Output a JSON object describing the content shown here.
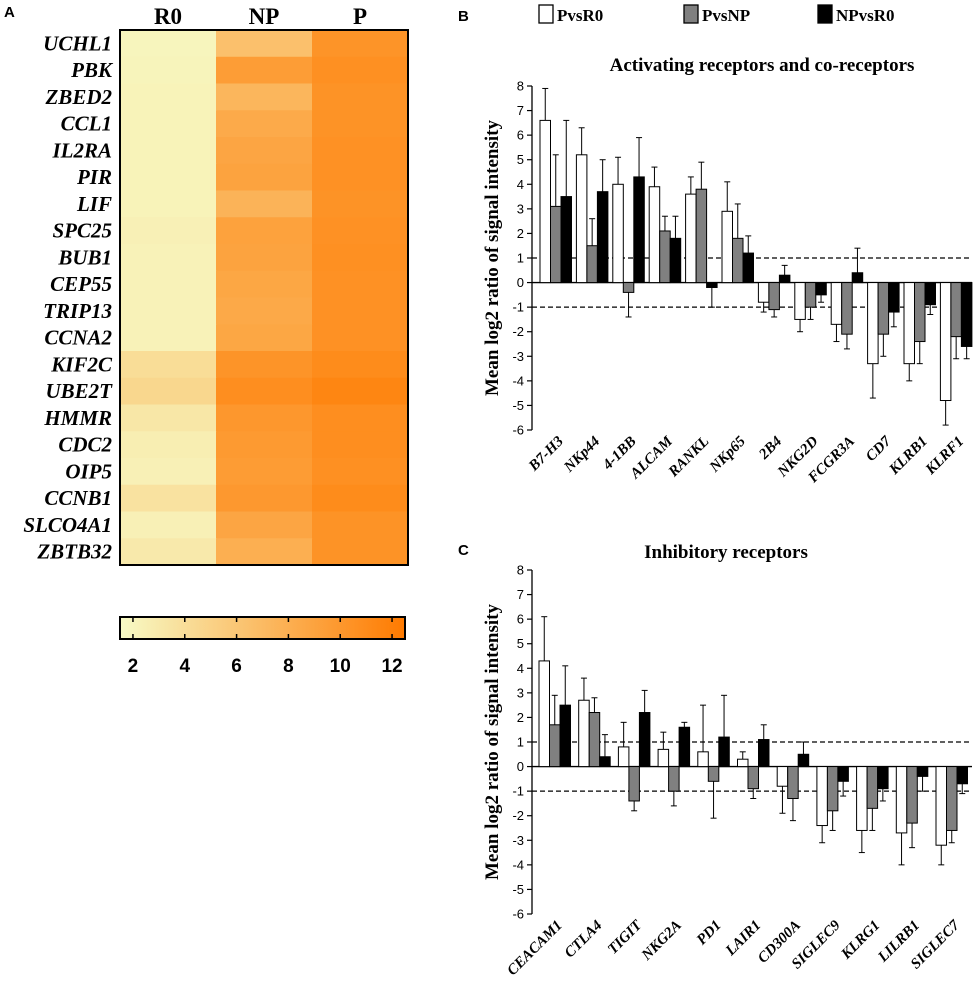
{
  "panels": {
    "a": "A",
    "b": "B",
    "c": "C"
  },
  "legend": [
    {
      "label": "PvsR0",
      "color": "#ffffff"
    },
    {
      "label": "PvsNP",
      "color": "#808080"
    },
    {
      "label": "NPvsR0",
      "color": "#000000"
    }
  ],
  "chart_data": [
    {
      "type": "heatmap",
      "panel": "A",
      "columns": [
        "R0",
        "NP",
        "P"
      ],
      "rows": [
        "UCHL1",
        "PBK",
        "ZBED2",
        "CCL1",
        "IL2RA",
        "PIR",
        "LIF",
        "SPC25",
        "BUB1",
        "CEP55",
        "TRIP13",
        "CCNA2",
        "KIF2C",
        "UBE2T",
        "HMMR",
        "CDC2",
        "OIP5",
        "CCNB1",
        "SLCO4A1",
        "ZBTB32"
      ],
      "values": [
        [
          2.0,
          6.5,
          10.3
        ],
        [
          2.1,
          9.5,
          10.6
        ],
        [
          2.2,
          7.4,
          10.4
        ],
        [
          2.2,
          8.4,
          10.4
        ],
        [
          2.2,
          8.8,
          10.5
        ],
        [
          2.2,
          9.0,
          10.5
        ],
        [
          2.2,
          7.6,
          10.4
        ],
        [
          2.4,
          9.1,
          10.5
        ],
        [
          2.3,
          9.0,
          10.6
        ],
        [
          2.3,
          8.7,
          10.5
        ],
        [
          2.3,
          8.5,
          10.5
        ],
        [
          2.3,
          8.7,
          10.5
        ],
        [
          4.1,
          10.3,
          11.0
        ],
        [
          4.6,
          10.8,
          11.5
        ],
        [
          3.2,
          10.0,
          10.8
        ],
        [
          2.6,
          9.8,
          10.8
        ],
        [
          2.4,
          9.6,
          10.6
        ],
        [
          3.6,
          9.9,
          11.0
        ],
        [
          2.4,
          8.8,
          10.4
        ],
        [
          3.0,
          8.0,
          10.4
        ]
      ],
      "colorbar": {
        "min": 1.5,
        "max": 12.5,
        "ticks": [
          "2",
          "4",
          "6",
          "8",
          "10",
          "12"
        ],
        "colors": [
          "#f7fbc6",
          "#ff7a00"
        ]
      }
    },
    {
      "type": "bar",
      "panel": "B",
      "title": "Activating receptors and co-receptors",
      "ylabel": "Mean log2 ratio of signal intensity",
      "ylim": [
        -6,
        8
      ],
      "yticks": [
        "-6",
        "-5",
        "-4",
        "-3",
        "-2",
        "-1",
        "0",
        "1",
        "2",
        "3",
        "4",
        "5",
        "6",
        "7",
        "8"
      ],
      "reference_lines": [
        1,
        -1
      ],
      "categories": [
        "B7-H3",
        "NKp44",
        "4-1BB",
        "ALCAM",
        "RANKL",
        "NKp65",
        "2B4",
        "NKG2D",
        "FCGR3A",
        "CD7",
        "KLRB1",
        "KLRF1"
      ],
      "series": [
        {
          "name": "PvsR0",
          "values": [
            6.6,
            5.2,
            4.0,
            3.9,
            3.6,
            2.9,
            -0.8,
            -1.5,
            -1.7,
            -3.3,
            -3.3,
            -4.8
          ],
          "errors": [
            1.3,
            1.1,
            1.1,
            0.8,
            0.7,
            1.2,
            0.4,
            0.5,
            0.7,
            1.4,
            0.7,
            1.0
          ]
        },
        {
          "name": "PvsNP",
          "values": [
            3.1,
            1.5,
            -0.4,
            2.1,
            3.8,
            1.8,
            -1.1,
            -1.0,
            -2.1,
            -2.1,
            -2.4,
            -2.2
          ],
          "errors": [
            2.1,
            1.1,
            1.0,
            0.6,
            1.1,
            1.4,
            0.3,
            0.5,
            0.6,
            0.9,
            0.9,
            0.9
          ]
        },
        {
          "name": "NPvsR0",
          "values": [
            3.5,
            3.7,
            4.3,
            1.8,
            -0.2,
            1.2,
            0.3,
            -0.5,
            0.4,
            -1.2,
            -0.9,
            -2.6
          ],
          "errors": [
            3.1,
            1.3,
            1.6,
            0.9,
            0.8,
            0.7,
            0.4,
            0.3,
            1.0,
            0.6,
            0.4,
            0.5
          ]
        }
      ]
    },
    {
      "type": "bar",
      "panel": "C",
      "title": "Inhibitory receptors",
      "ylabel": "Mean log2 ratio of signal intensity",
      "ylim": [
        -6,
        8
      ],
      "yticks": [
        "-6",
        "-5",
        "-4",
        "-3",
        "-2",
        "-1",
        "0",
        "1",
        "2",
        "3",
        "4",
        "5",
        "6",
        "7",
        "8"
      ],
      "reference_lines": [
        1,
        -1
      ],
      "categories": [
        "CEACAM1",
        "CTLA4",
        "TIGIT",
        "NKG2A",
        "PD1",
        "LAIR1",
        "CD300A",
        "SIGLEC9",
        "KLRG1",
        "LILRB1",
        "SIGLEC7"
      ],
      "series": [
        {
          "name": "PvsR0",
          "values": [
            4.3,
            2.7,
            0.8,
            0.7,
            0.6,
            0.3,
            -0.8,
            -2.4,
            -2.6,
            -2.7,
            -3.2
          ],
          "errors": [
            1.8,
            0.9,
            1.0,
            0.7,
            1.9,
            0.3,
            1.1,
            0.7,
            0.9,
            1.3,
            0.8
          ]
        },
        {
          "name": "PvsNP",
          "values": [
            1.7,
            2.2,
            -1.4,
            -1.0,
            -0.6,
            -0.9,
            -1.3,
            -1.8,
            -1.7,
            -2.3,
            -2.6
          ],
          "errors": [
            1.2,
            0.6,
            0.4,
            0.6,
            1.5,
            0.4,
            0.9,
            0.8,
            0.9,
            1.0,
            0.5
          ]
        },
        {
          "name": "NPvsR0",
          "values": [
            2.5,
            0.4,
            2.2,
            1.6,
            1.2,
            1.1,
            0.5,
            -0.6,
            -0.9,
            -0.4,
            -0.7
          ],
          "errors": [
            1.6,
            0.9,
            0.9,
            0.2,
            1.7,
            0.6,
            0.5,
            0.6,
            0.5,
            0.6,
            0.4
          ]
        }
      ]
    }
  ]
}
